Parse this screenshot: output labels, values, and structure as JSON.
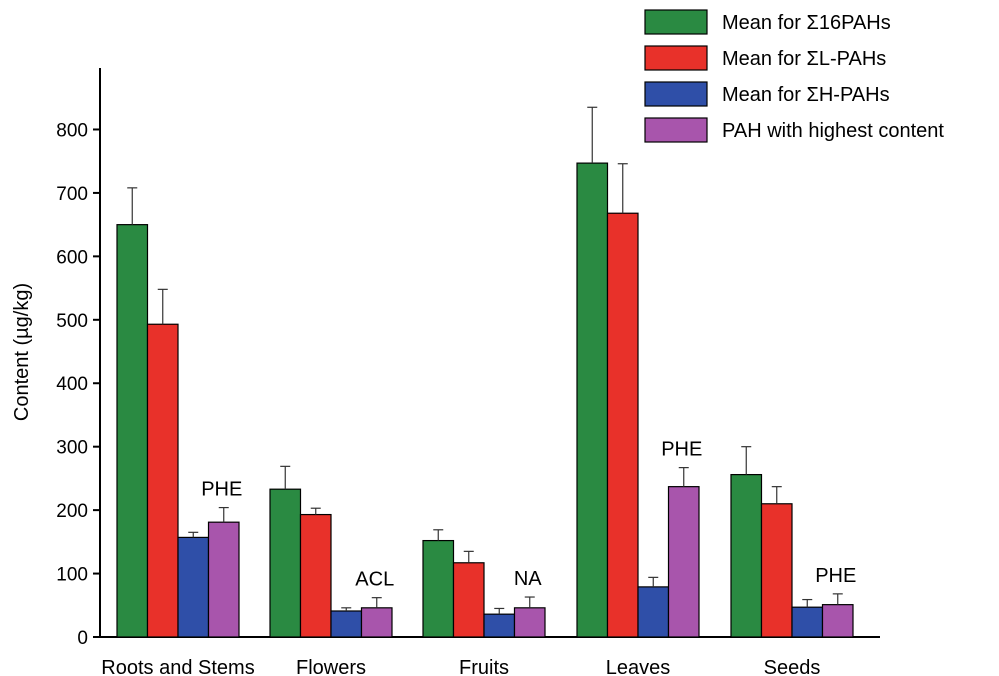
{
  "chart_data": {
    "type": "bar",
    "title": "",
    "xlabel": "",
    "ylabel": "Content (µg/kg)",
    "ylim": [
      0,
      800
    ],
    "yticks": [
      0,
      100,
      200,
      300,
      400,
      500,
      600,
      700,
      800
    ],
    "grid": false,
    "legend_position": "top-right",
    "categories": [
      "Roots and Stems",
      "Flowers",
      "Fruits",
      "Leaves",
      "Seeds"
    ],
    "series": [
      {
        "name": "Mean for Σ16PAHs",
        "color": "#2a8a42",
        "values": [
          650,
          233,
          152,
          747,
          256
        ],
        "errors": [
          58,
          36,
          17,
          88,
          44
        ]
      },
      {
        "name": "Mean for ΣL-PAHs",
        "color": "#e8312a",
        "values": [
          493,
          193,
          117,
          668,
          210
        ],
        "errors": [
          55,
          10,
          18,
          78,
          27
        ]
      },
      {
        "name": "Mean for ΣH-PAHs",
        "color": "#2f4fa8",
        "values": [
          157,
          41,
          36,
          79,
          47
        ],
        "errors": [
          8,
          5,
          9,
          15,
          12
        ]
      },
      {
        "name": "PAH with highest content",
        "color": "#a855ac",
        "values": [
          181,
          46,
          46,
          237,
          51
        ],
        "errors": [
          23,
          16,
          17,
          30,
          17
        ]
      }
    ],
    "annotations": [
      "PHE",
      "ACL",
      "NA",
      "PHE",
      "PHE"
    ]
  }
}
